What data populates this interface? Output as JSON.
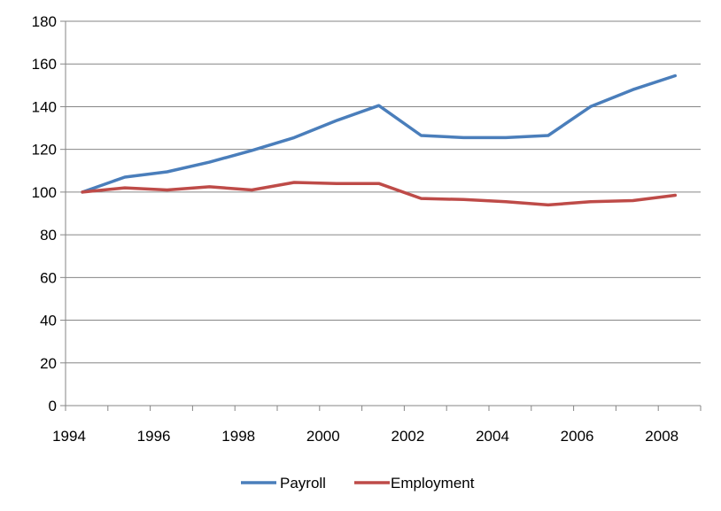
{
  "chart_data": {
    "type": "line",
    "title": "",
    "xlabel": "",
    "ylabel": "",
    "x": [
      1994.4,
      1995.4,
      1996.4,
      1997.4,
      1998.4,
      1999.4,
      2000.4,
      2001.4,
      2002.4,
      2003.4,
      2004.4,
      2005.4,
      2006.4,
      2007.4,
      2008.4
    ],
    "x_ticks": [
      "1994",
      "1996",
      "1998",
      "2000",
      "2002",
      "2004",
      "2006",
      "2008"
    ],
    "y_ticks": [
      "0",
      "20",
      "40",
      "60",
      "80",
      "100",
      "120",
      "140",
      "160",
      "180"
    ],
    "xlim": [
      1994,
      2009
    ],
    "ylim": [
      0,
      180
    ],
    "grid": "horizontal",
    "legend_position": "bottom",
    "series": [
      {
        "name": "Payroll",
        "color": "#4a7ebb",
        "values": [
          100,
          107,
          109.5,
          114,
          119.5,
          125.5,
          133.5,
          140.5,
          126.5,
          125.5,
          125.5,
          126.5,
          140,
          148,
          154.5
        ]
      },
      {
        "name": "Employment",
        "color": "#be4b48",
        "values": [
          100,
          102,
          101,
          102.5,
          101,
          104.5,
          104,
          104,
          97,
          96.5,
          95.5,
          94,
          95.5,
          96,
          98.5
        ]
      }
    ]
  }
}
